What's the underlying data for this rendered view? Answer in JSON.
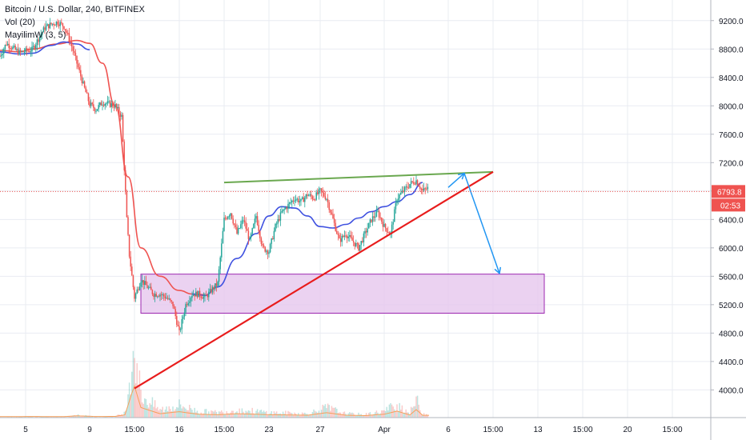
{
  "legend": {
    "title": "Bitcoin / U.S. Dollar, 240, BITFINEX",
    "vol": "Vol (20)",
    "indicator": "MayilimW (3, 5)"
  },
  "price_badge": {
    "price": "6793.8",
    "countdown": "02:53",
    "color": "#ef5350"
  },
  "colors": {
    "up": "#26a69a",
    "down": "#ef5350",
    "trend_green": "#6aa84f",
    "trend_red": "#e81c1c",
    "arrow": "#2196f3",
    "zone_fill": "#e6c7ee",
    "zone_stroke": "#9c27b0",
    "ma_red": "#ef5350",
    "ma_blue": "#3f51e0",
    "volume_ma": "#f5a05a",
    "grid": "#e9ecf2"
  },
  "chart_data": {
    "type": "candlestick",
    "title": "Bitcoin / U.S. Dollar, 240, BITFINEX",
    "y_axis": {
      "ticks": [
        4000,
        4400,
        4800,
        5200,
        5600,
        6000,
        6400,
        6800,
        7200,
        7600,
        8000,
        8400,
        8800,
        9200
      ],
      "tick_labels": [
        "4000.0",
        "4400.0",
        "4800.0",
        "5200.0",
        "5600.0",
        "6000.0",
        "6400.0",
        "6800.0",
        "7200.0",
        "7600.0",
        "8000.0",
        "8400.0",
        "8800.0",
        "9200.0"
      ],
      "range": [
        3700,
        9400
      ],
      "position": "right"
    },
    "x_axis": {
      "tick_labels": [
        "5",
        "9",
        "15:00",
        "16",
        "15:00",
        "23",
        "27",
        "Apr",
        "6",
        "15:00",
        "13",
        "15:00",
        "20",
        "15:00"
      ],
      "tick_index": [
        4,
        14,
        21,
        28,
        35,
        42,
        50,
        60,
        70,
        77,
        84,
        91,
        98,
        105
      ]
    },
    "last_price": 6793.8,
    "price_series": {
      "index": [
        0,
        1,
        3,
        5,
        7,
        8,
        9,
        10,
        11,
        12,
        13,
        14,
        15,
        16,
        18,
        19,
        19.8,
        20.2,
        21,
        22,
        23,
        24,
        25,
        26,
        27,
        28,
        29,
        30,
        31,
        32,
        33,
        34,
        35,
        36,
        37,
        38,
        39,
        40,
        41,
        42,
        43,
        44,
        45,
        46,
        47,
        48,
        49,
        50,
        51,
        52,
        53,
        54,
        55,
        56,
        57,
        58,
        59,
        60,
        61,
        62,
        63,
        64,
        65,
        66,
        67
      ],
      "close": [
        8700,
        8880,
        8750,
        8790,
        9100,
        9150,
        9180,
        9120,
        8900,
        8600,
        8300,
        8020,
        7950,
        8050,
        8000,
        7850,
        6400,
        5900,
        5300,
        5550,
        5450,
        5350,
        5350,
        5300,
        5200,
        4800,
        5200,
        5350,
        5350,
        5300,
        5400,
        5500,
        6400,
        6500,
        6200,
        6400,
        6100,
        6450,
        6000,
        5950,
        6300,
        6500,
        6600,
        6700,
        6650,
        6750,
        6700,
        6800,
        6700,
        6400,
        6100,
        6200,
        6100,
        6000,
        6200,
        6400,
        6500,
        6300,
        6200,
        6700,
        6800,
        6900,
        6950,
        6800,
        6850
      ]
    },
    "volume": {
      "index": [
        0,
        5,
        10,
        12,
        15,
        18,
        19.6,
        20.2,
        21,
        22,
        25,
        28,
        31,
        34,
        37,
        40,
        42,
        45,
        48,
        51,
        54,
        57,
        60,
        62,
        64,
        65,
        66
      ],
      "values": [
        2,
        3,
        2,
        10,
        3,
        4,
        20,
        160,
        300,
        90,
        30,
        50,
        25,
        20,
        30,
        25,
        20,
        18,
        15,
        40,
        15,
        12,
        25,
        55,
        18,
        70,
        15
      ]
    },
    "annotations": {
      "resistance_line": {
        "from": [
          35,
          6920
        ],
        "to": [
          77,
          7070
        ],
        "color": "green"
      },
      "support_line": {
        "from": [
          21,
          4020
        ],
        "to": [
          77,
          7070
        ],
        "color": "red"
      },
      "demand_zone": {
        "x": [
          22,
          85
        ],
        "y": [
          5080,
          5630
        ]
      },
      "projection_arrows": [
        {
          "from": [
            70,
            6850
          ],
          "to": [
            72.5,
            7050
          ]
        },
        {
          "from": [
            72.5,
            7050
          ],
          "to": [
            78,
            5640
          ]
        }
      ]
    }
  }
}
